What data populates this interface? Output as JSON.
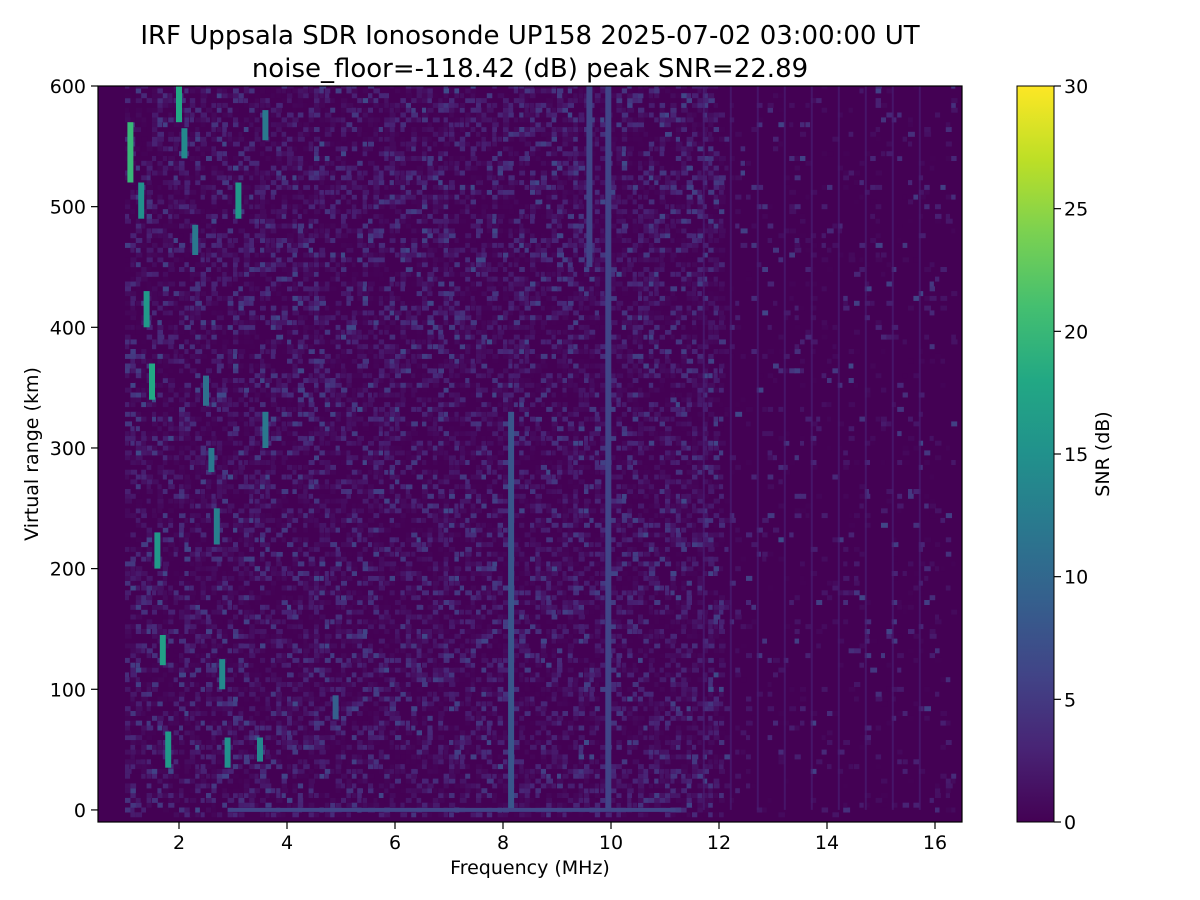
{
  "chart_data": {
    "type": "heatmap",
    "title": "IRF Uppsala SDR Ionosonde UP158 2025-07-02 03:00:00  UT",
    "subtitle": "noise_floor=-118.42 (dB) peak SNR=22.89",
    "xlabel": "Frequency (MHz)",
    "ylabel": "Virtual range (km)",
    "xlim": [
      0.5,
      16.5
    ],
    "ylim": [
      -10,
      600
    ],
    "xticks": [
      2,
      4,
      6,
      8,
      10,
      12,
      14,
      16
    ],
    "yticks": [
      0,
      100,
      200,
      300,
      400,
      500,
      600
    ],
    "colorbar": {
      "label": "SNR (dB)",
      "range": [
        0,
        30
      ],
      "ticks": [
        0,
        5,
        10,
        15,
        20,
        25,
        30
      ],
      "colormap": "viridis"
    },
    "grid": false,
    "features": [
      {
        "kind": "vertical-trace",
        "freq_mhz": 8.15,
        "range_km": [
          0,
          330
        ],
        "snr_db": 8
      },
      {
        "kind": "vertical-trace",
        "freq_mhz": 9.95,
        "range_km": [
          0,
          600
        ],
        "snr_db": 6
      },
      {
        "kind": "vertical-trace",
        "freq_mhz": 9.6,
        "range_km": [
          450,
          600
        ],
        "snr_db": 6
      },
      {
        "kind": "ground-line",
        "freq_mhz": [
          2.9,
          11.2
        ],
        "range_km": 0,
        "snr_db": 6
      },
      {
        "kind": "echo",
        "freq_mhz": 1.1,
        "range_km": [
          520,
          570
        ],
        "snr_db": 20
      },
      {
        "kind": "echo",
        "freq_mhz": 1.3,
        "range_km": [
          490,
          520
        ],
        "snr_db": 15
      },
      {
        "kind": "echo",
        "freq_mhz": 1.4,
        "range_km": [
          400,
          430
        ],
        "snr_db": 16
      },
      {
        "kind": "echo",
        "freq_mhz": 1.5,
        "range_km": [
          340,
          370
        ],
        "snr_db": 18
      },
      {
        "kind": "echo",
        "freq_mhz": 1.6,
        "range_km": [
          200,
          230
        ],
        "snr_db": 16
      },
      {
        "kind": "echo",
        "freq_mhz": 1.7,
        "range_km": [
          120,
          145
        ],
        "snr_db": 17
      },
      {
        "kind": "echo",
        "freq_mhz": 1.8,
        "range_km": [
          35,
          65
        ],
        "snr_db": 16
      },
      {
        "kind": "echo",
        "freq_mhz": 2.0,
        "range_km": [
          570,
          600
        ],
        "snr_db": 18
      },
      {
        "kind": "echo",
        "freq_mhz": 2.1,
        "range_km": [
          540,
          565
        ],
        "snr_db": 14
      },
      {
        "kind": "echo",
        "freq_mhz": 2.3,
        "range_km": [
          460,
          485
        ],
        "snr_db": 12
      },
      {
        "kind": "echo",
        "freq_mhz": 2.5,
        "range_km": [
          335,
          360
        ],
        "snr_db": 11
      },
      {
        "kind": "echo",
        "freq_mhz": 2.6,
        "range_km": [
          280,
          300
        ],
        "snr_db": 12
      },
      {
        "kind": "echo",
        "freq_mhz": 2.7,
        "range_km": [
          220,
          250
        ],
        "snr_db": 13
      },
      {
        "kind": "echo",
        "freq_mhz": 2.8,
        "range_km": [
          100,
          125
        ],
        "snr_db": 14
      },
      {
        "kind": "echo",
        "freq_mhz": 2.9,
        "range_km": [
          35,
          60
        ],
        "snr_db": 15
      },
      {
        "kind": "echo",
        "freq_mhz": 3.1,
        "range_km": [
          490,
          520
        ],
        "snr_db": 16
      },
      {
        "kind": "echo",
        "freq_mhz": 3.5,
        "range_km": [
          40,
          60
        ],
        "snr_db": 14
      },
      {
        "kind": "echo",
        "freq_mhz": 3.6,
        "range_km": [
          300,
          330
        ],
        "snr_db": 12
      },
      {
        "kind": "echo",
        "freq_mhz": 3.6,
        "range_km": [
          555,
          580
        ],
        "snr_db": 12
      },
      {
        "kind": "echo",
        "freq_mhz": 4.9,
        "range_km": [
          75,
          95
        ],
        "snr_db": 9
      }
    ]
  }
}
